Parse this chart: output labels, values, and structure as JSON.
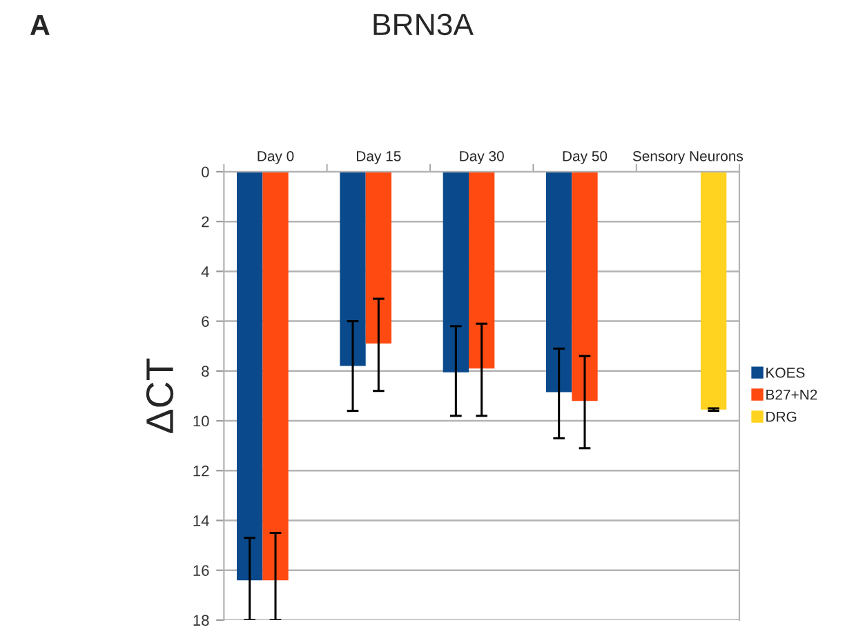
{
  "chart_data": {
    "type": "bar",
    "title": "BRN3A",
    "ylabel": "ΔCT",
    "annotations": [
      "A"
    ],
    "categories": [
      "Day 0",
      "Day 15",
      "Day 30",
      "Day 50",
      "Sensory Neurons"
    ],
    "series": [
      {
        "name": "KOES",
        "color": "#0a4a8c",
        "values": [
          16.4,
          7.8,
          8.05,
          8.85,
          null
        ],
        "errors": [
          [
            14.7,
            18
          ],
          [
            6.0,
            9.6
          ],
          [
            6.2,
            9.8
          ],
          [
            7.1,
            10.7
          ],
          null
        ]
      },
      {
        "name": "B27+N2",
        "color": "#ff4a12",
        "values": [
          16.4,
          6.9,
          7.9,
          9.2,
          null
        ],
        "errors": [
          [
            14.5,
            18
          ],
          [
            5.1,
            8.8
          ],
          [
            6.1,
            9.8
          ],
          [
            7.4,
            11.1
          ],
          null
        ]
      },
      {
        "name": "DRG",
        "color": "#ffd320",
        "values": [
          null,
          null,
          null,
          null,
          9.55
        ],
        "errors": [
          null,
          null,
          null,
          null,
          [
            9.5,
            9.6
          ]
        ]
      }
    ],
    "ylim": [
      18,
      0
    ],
    "yticks": [
      0,
      2,
      4,
      6,
      8,
      10,
      12,
      14,
      16,
      18
    ],
    "grid": "y",
    "legend": "right"
  }
}
